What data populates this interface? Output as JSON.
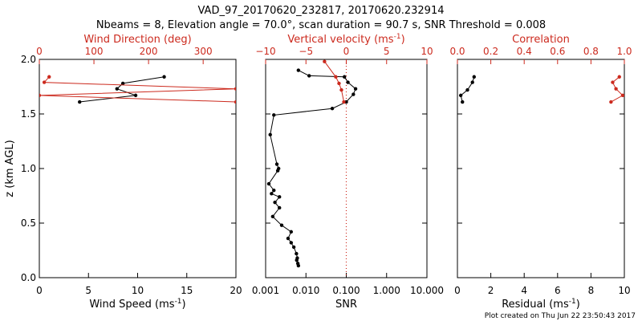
{
  "title": {
    "line1": "VAD_97_20170620_232817, 20170620.232914",
    "line2": "Nbeams = 8, Elevation angle = 70.0°, scan duration = 90.7 s, SNR Threshold = 0.008"
  },
  "credit": "Plot created on Thu Jun 22 23:50:43 2017",
  "colors": {
    "black": "#000000",
    "red": "#cc2a1e"
  },
  "chart_data": [
    {
      "type": "line",
      "panel": "wind",
      "ylabel": "z (km AGL)",
      "ylim": [
        0,
        2
      ],
      "yticks": [
        0,
        0.5,
        1,
        1.5,
        2
      ],
      "ytick_labels": [
        "0.0",
        "0.5",
        "1.0",
        "1.5",
        "2.0"
      ],
      "bottom_axis": {
        "label": "Wind Speed (ms",
        "label_sup": "-1",
        "label_tail": ")",
        "range": [
          0,
          20
        ],
        "ticks": [
          0,
          5,
          10,
          15,
          20
        ],
        "tick_labels": [
          "0",
          "5",
          "10",
          "15",
          "20"
        ],
        "color": "#000000"
      },
      "top_axis": {
        "label": "Wind Direction (deg)",
        "range": [
          0,
          360
        ],
        "ticks": [
          0,
          100,
          200,
          300
        ],
        "tick_labels": [
          "0",
          "100",
          "200",
          "300"
        ],
        "color": "#cc2a1e"
      },
      "series": [
        {
          "axis": "bottom",
          "color": "#000000",
          "x": [
            12.7,
            8.5,
            7.9,
            9.8,
            4.1
          ],
          "y": [
            1.84,
            1.78,
            1.73,
            1.67,
            1.61
          ]
        },
        {
          "axis": "top",
          "color": "#cc2a1e",
          "x": [
            18,
            9,
            360,
            0,
            360
          ],
          "y": [
            1.84,
            1.79,
            1.73,
            1.67,
            1.61
          ]
        }
      ]
    },
    {
      "type": "line",
      "panel": "snr",
      "ylim": [
        0,
        2
      ],
      "yticks": [
        0,
        0.5,
        1,
        1.5,
        2
      ],
      "bottom_axis": {
        "label": "SNR",
        "scale": "log",
        "range": [
          0.001,
          10
        ],
        "ticks": [
          0.001,
          0.01,
          0.1,
          1,
          10
        ],
        "tick_labels": [
          "0.001",
          "0.010",
          "0.100",
          "1.000",
          "10.000"
        ],
        "color": "#000000"
      },
      "top_axis": {
        "label": "Vertical velocity (ms",
        "label_sup": "-1",
        "label_tail": ")",
        "range": [
          -10,
          10
        ],
        "ticks": [
          -10,
          -5,
          0,
          5,
          10
        ],
        "tick_labels": [
          "−10",
          "−5",
          "0",
          "5",
          "10"
        ],
        "color": "#cc2a1e"
      },
      "zero_line": {
        "axis": "top",
        "value": 0,
        "style": "dotted",
        "color": "#cc2a1e"
      },
      "series": [
        {
          "axis": "bottom",
          "color": "#000000",
          "points": true,
          "x": [
            0.0065,
            0.012,
            0.09,
            0.11,
            0.17,
            0.15,
            0.1,
            0.045,
            0.0016,
            0.0013,
            0.0019,
            0.0021,
            0.002,
            0.0012,
            0.0016,
            0.0014,
            0.0022,
            0.0017,
            0.0022,
            0.0015,
            0.0025,
            0.0043,
            0.0036,
            0.0043,
            0.005,
            0.0058,
            0.0061,
            0.0059,
            0.0063,
            0.0065
          ],
          "y": [
            1.9,
            1.85,
            1.84,
            1.79,
            1.73,
            1.68,
            1.61,
            1.55,
            1.49,
            1.31,
            1.04,
            1.0,
            0.98,
            0.86,
            0.8,
            0.77,
            0.74,
            0.69,
            0.64,
            0.56,
            0.48,
            0.42,
            0.36,
            0.32,
            0.28,
            0.22,
            0.18,
            0.16,
            0.13,
            0.11
          ]
        },
        {
          "axis": "top",
          "color": "#cc2a1e",
          "points": true,
          "x": [
            -2.7,
            -1.3,
            -0.9,
            -0.6,
            -0.3
          ],
          "y": [
            1.98,
            1.84,
            1.78,
            1.72,
            1.61
          ]
        }
      ]
    },
    {
      "type": "line",
      "panel": "residual",
      "ylim": [
        0,
        2
      ],
      "yticks": [
        0,
        0.5,
        1,
        1.5,
        2
      ],
      "bottom_axis": {
        "label": "Residual (ms",
        "label_sup": "-1",
        "label_tail": ")",
        "range": [
          0,
          10
        ],
        "ticks": [
          0,
          2,
          4,
          6,
          8,
          10
        ],
        "tick_labels": [
          "0",
          "2",
          "4",
          "6",
          "8",
          "10"
        ],
        "color": "#000000"
      },
      "top_axis": {
        "label": "Correlation",
        "range": [
          0,
          1
        ],
        "ticks": [
          0,
          0.2,
          0.4,
          0.6,
          0.8,
          1.0
        ],
        "tick_labels": [
          "0.0",
          "0.2",
          "0.4",
          "0.6",
          "0.8",
          "1.0"
        ],
        "color": "#cc2a1e"
      },
      "series": [
        {
          "axis": "bottom",
          "color": "#000000",
          "points": true,
          "x": [
            1.0,
            0.9,
            0.6,
            0.2,
            0.3
          ],
          "y": [
            1.84,
            1.79,
            1.72,
            1.67,
            1.61
          ]
        },
        {
          "axis": "top",
          "color": "#cc2a1e",
          "points": true,
          "x": [
            0.97,
            0.93,
            0.95,
            0.99,
            0.92
          ],
          "y": [
            1.84,
            1.79,
            1.73,
            1.67,
            1.61
          ]
        }
      ]
    }
  ]
}
